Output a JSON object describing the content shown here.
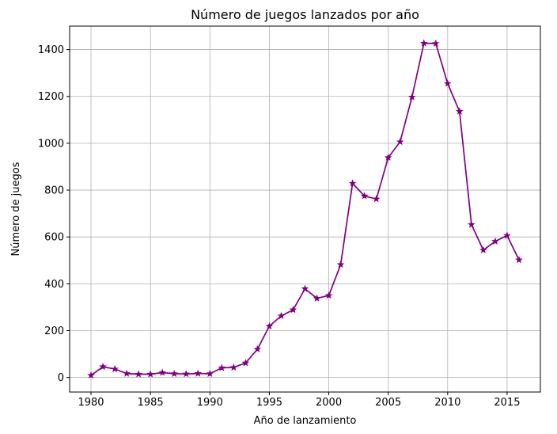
{
  "chart_data": {
    "type": "line",
    "title": "Número de juegos lanzados por año",
    "xlabel": "Año de lanzamiento",
    "ylabel": "Número de juegos",
    "xlim": [
      1978.2,
      2017.8
    ],
    "ylim": [
      -62,
      1500
    ],
    "xticks": [
      1980,
      1985,
      1990,
      1995,
      2000,
      2005,
      2010,
      2015
    ],
    "yticks": [
      0,
      200,
      400,
      600,
      800,
      1000,
      1200,
      1400
    ],
    "grid": true,
    "color": "#800080",
    "marker": "star",
    "series": [
      {
        "x": [
          1980,
          1981,
          1982,
          1983,
          1984,
          1985,
          1986,
          1987,
          1988,
          1989,
          1990,
          1991,
          1992,
          1993,
          1994,
          1995,
          1996,
          1997,
          1998,
          1999,
          2000,
          2001,
          2002,
          2003,
          2004,
          2005,
          2006,
          2007,
          2008,
          2009,
          2010,
          2011,
          2012,
          2013,
          2014,
          2015,
          2016
        ],
        "values": [
          9,
          46,
          36,
          17,
          14,
          14,
          21,
          16,
          15,
          17,
          16,
          41,
          43,
          62,
          121,
          219,
          263,
          289,
          379,
          338,
          350,
          482,
          829,
          775,
          762,
          939,
          1006,
          1197,
          1427,
          1426,
          1255,
          1136,
          653,
          544,
          581,
          606,
          502
        ]
      }
    ]
  }
}
